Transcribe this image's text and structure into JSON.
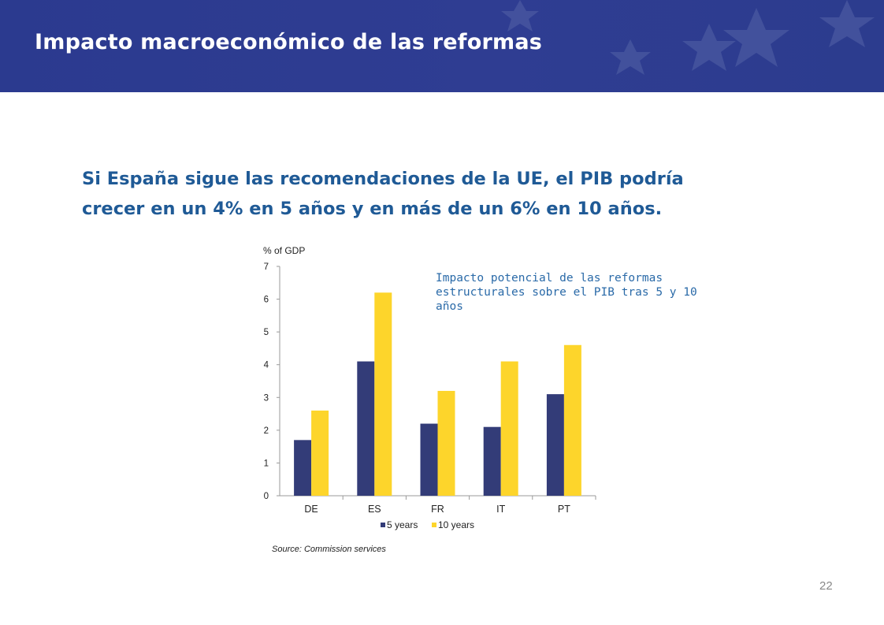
{
  "slide": {
    "title": "Impacto macroeconómico de las reformas",
    "headline_line1": "Si España sigue las recomendaciones de la UE, el PIB podría",
    "headline_line2": "crecer en un 4% en 5 años y en más de un 6% en 10 años.",
    "page_number": "22"
  },
  "colors": {
    "banner": "#2b3a8f",
    "series_5y": "#333c78",
    "series_10y": "#fdd52b",
    "headline": "#1f5a96"
  },
  "chart_data": {
    "type": "bar",
    "ylabel": "% of GDP",
    "categories": [
      "DE",
      "ES",
      "FR",
      "IT",
      "PT"
    ],
    "series": [
      {
        "name": "5 years",
        "values": [
          1.7,
          4.1,
          2.2,
          2.1,
          3.1
        ]
      },
      {
        "name": "10 years",
        "values": [
          2.6,
          6.2,
          3.2,
          4.1,
          4.6
        ]
      }
    ],
    "ylim": [
      0,
      7
    ],
    "yticks": [
      0,
      1,
      2,
      3,
      4,
      5,
      6,
      7
    ],
    "grid": false,
    "legend": "bottom",
    "source": "Source: Commission services",
    "annotation": "Impacto potencial de las reformas estructurales sobre el PIB tras 5 y 10 años"
  }
}
